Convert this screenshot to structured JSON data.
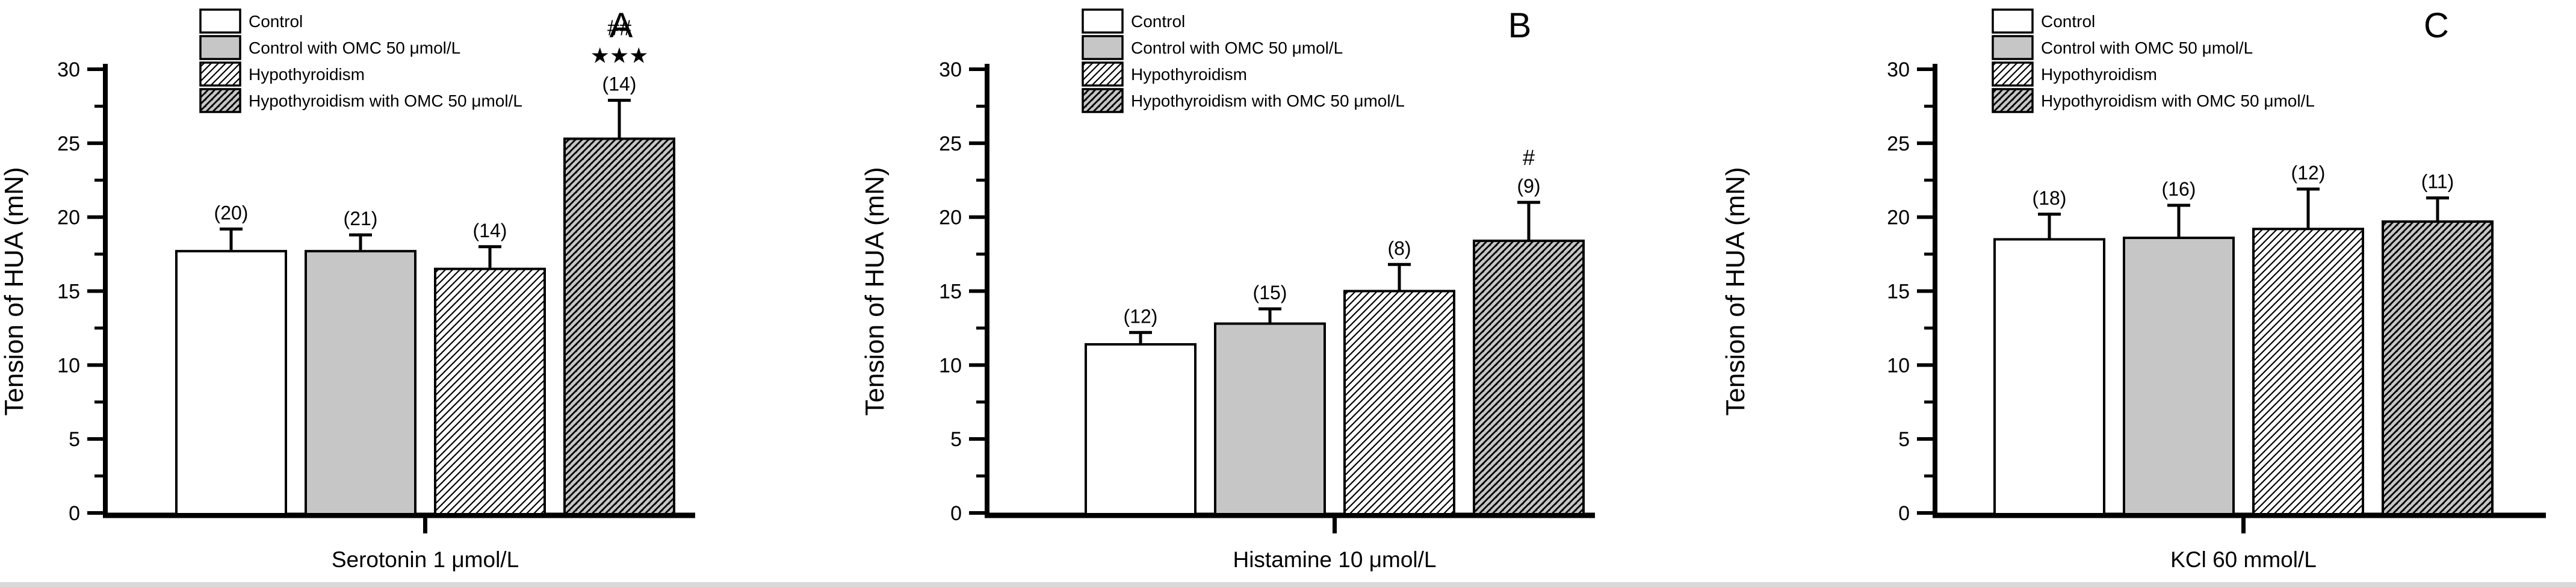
{
  "figure": {
    "background": "#ffffff",
    "axis_color": "#000000",
    "bar_border_color": "#000000",
    "gray_fill": "#c6c6c6",
    "bottom_strip_color": "#d9d9d9",
    "ylabel": "Tension of HUA (mN)",
    "yticks": [
      "0",
      "5",
      "10",
      "15",
      "20",
      "25",
      "30"
    ],
    "ylim": [
      0,
      30
    ]
  },
  "legend": {
    "items": [
      {
        "label": "Control",
        "swatch": "white"
      },
      {
        "label": "Control with OMC 50 μmol/L",
        "swatch": "gray"
      },
      {
        "label": "Hypothyroidism",
        "swatch": "hatch-white"
      },
      {
        "label": "Hypothyroidism with OMC 50 μmol/L",
        "swatch": "hatch-gray"
      }
    ]
  },
  "chart_data": [
    {
      "type": "bar",
      "panel": "A",
      "title": "",
      "xlabel": "Serotonin 1 μmol/L",
      "ylabel": "Tension of HUA (mN)",
      "ylim": [
        0,
        30
      ],
      "grid": false,
      "legend_position": "top-left",
      "categories": [
        "Control",
        "Control with OMC 50 μmol/L",
        "Hypothyroidism",
        "Hypothyroidism with OMC 50 μmol/L"
      ],
      "values": [
        17.7,
        17.7,
        16.5,
        25.3
      ],
      "errors_plus": [
        1.5,
        1.1,
        1.5,
        2.6
      ],
      "counts": [
        "(20)",
        "(21)",
        "(14)",
        "(14)"
      ],
      "sig": [
        "##",
        "★★★"
      ],
      "sig_bar_index": 3
    },
    {
      "type": "bar",
      "panel": "B",
      "title": "",
      "xlabel": "Histamine 10 μmol/L",
      "ylabel": "Tension of HUA (mN)",
      "ylim": [
        0,
        30
      ],
      "grid": false,
      "legend_position": "top-left",
      "categories": [
        "Control",
        "Control with OMC 50 μmol/L",
        "Hypothyroidism",
        "Hypothyroidism with OMC 50 μmol/L"
      ],
      "values": [
        11.4,
        12.8,
        15.0,
        18.4
      ],
      "errors_plus": [
        0.8,
        1.0,
        1.8,
        2.6
      ],
      "counts": [
        "(12)",
        "(15)",
        "(8)",
        "(9)"
      ],
      "sig": [
        "#"
      ],
      "sig_bar_index": 3
    },
    {
      "type": "bar",
      "panel": "C",
      "title": "",
      "xlabel": "KCl 60 mmol/L",
      "ylabel": "Tension of HUA (mN)",
      "ylim": [
        0,
        30
      ],
      "grid": false,
      "legend_position": "top-left",
      "categories": [
        "Control",
        "Control with OMC 50 μmol/L",
        "Hypothyroidism",
        "Hypothyroidism with OMC 50 μmol/L"
      ],
      "values": [
        18.5,
        18.6,
        19.2,
        19.7
      ],
      "errors_plus": [
        1.7,
        2.2,
        2.7,
        1.6
      ],
      "counts": [
        "(18)",
        "(16)",
        "(12)",
        "(11)"
      ],
      "sig": [],
      "sig_bar_index": 3
    }
  ]
}
